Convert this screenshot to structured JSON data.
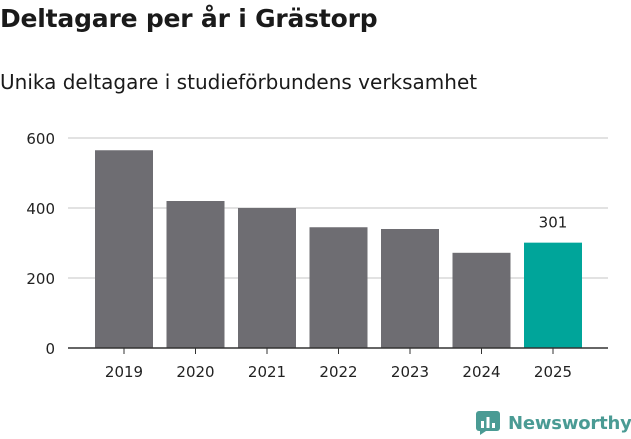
{
  "title": "Deltagare per år i Grästorp",
  "subtitle": "Unika deltagare i studieförbundens verksamhet",
  "brand": {
    "name": "Newsworthy",
    "icon": "newsworthy-logo-icon",
    "color": "#4a9b94"
  },
  "chart_data": {
    "type": "bar",
    "title": "Deltagare per år i Grästorp",
    "subtitle": "Unika deltagare i studieförbundens verksamhet",
    "xlabel": "",
    "ylabel": "",
    "categories": [
      "2019",
      "2020",
      "2021",
      "2022",
      "2023",
      "2024",
      "2025"
    ],
    "values": [
      565,
      420,
      400,
      345,
      340,
      272,
      301
    ],
    "ylim": [
      0,
      600
    ],
    "yticks": [
      0,
      200,
      400,
      600
    ],
    "grid": true,
    "legend": "none",
    "colors": {
      "default": "#6e6d72",
      "highlight": "#00a59a"
    },
    "highlight_index": 6,
    "data_labels": [
      {
        "category": "2025",
        "text": "301"
      }
    ]
  }
}
